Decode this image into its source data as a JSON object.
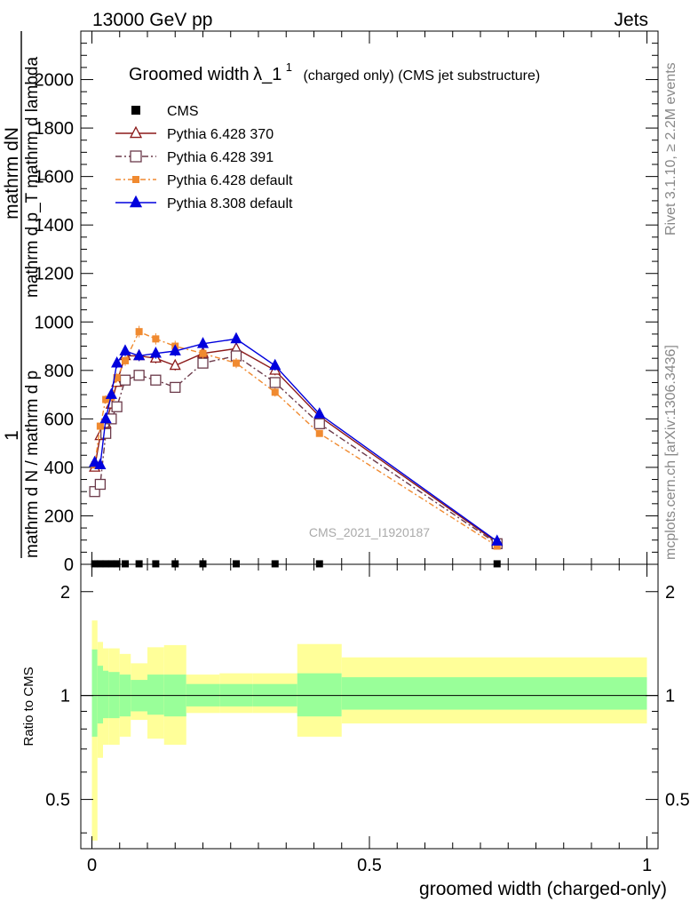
{
  "header": {
    "left": "13000 GeV pp",
    "right": "Jets"
  },
  "side_labels": {
    "rivet": "Rivet 3.1.10, ≥ 2.2M events",
    "mcplots": "mcplots.cern.ch [arXiv:1306.3436]"
  },
  "watermark": "CMS_2021_I1920187",
  "chart_data": [
    {
      "type": "line",
      "title_main": "Groomed width",
      "title_lambda": "λ_1",
      "title_sup": "1",
      "title_rest": "(charged only) (CMS jet substructure)",
      "ylabel_top": "1",
      "ylabel_numer": "mathrm dN",
      "ylabel_bottom": "mathrm d N / mathrm d p",
      "ylabel_bottom2": "mathrm d p_T mathrm d lambda",
      "ylabel_sub": "T",
      "xlim": [
        -0.02,
        1.02
      ],
      "ylim": [
        0,
        2200
      ],
      "yticks": [
        0,
        200,
        400,
        600,
        800,
        1000,
        1200,
        1400,
        1600,
        1800,
        2000
      ],
      "ytick_labels": [
        "0",
        "200",
        "400",
        "600",
        "800",
        "1000",
        "1200",
        "1400",
        "1600",
        "1800",
        "2000"
      ],
      "legend_position": "top-left",
      "series": [
        {
          "name": "CMS",
          "color": "#000000",
          "marker": "square-filled",
          "x": [
            0.005,
            0.015,
            0.025,
            0.035,
            0.045,
            0.06,
            0.085,
            0.115,
            0.15,
            0.2,
            0.26,
            0.33,
            0.41,
            0.73
          ],
          "y": [
            2,
            2,
            2,
            2,
            2,
            2,
            2,
            2,
            2,
            2,
            2,
            2,
            2,
            2
          ]
        },
        {
          "name": "Pythia 6.428 370",
          "color": "#8b1a1a",
          "marker": "triangle-open",
          "x": [
            0.005,
            0.015,
            0.025,
            0.035,
            0.045,
            0.06,
            0.085,
            0.115,
            0.15,
            0.2,
            0.26,
            0.33,
            0.41,
            0.73
          ],
          "y": [
            400,
            530,
            580,
            660,
            750,
            860,
            860,
            850,
            820,
            870,
            890,
            800,
            610,
            90
          ]
        },
        {
          "name": "Pythia 6.428 391",
          "color": "#6b3a4a",
          "marker": "square-open",
          "x": [
            0.005,
            0.015,
            0.025,
            0.035,
            0.045,
            0.06,
            0.085,
            0.115,
            0.15,
            0.2,
            0.26,
            0.33,
            0.41,
            0.73
          ],
          "y": [
            300,
            330,
            540,
            600,
            650,
            760,
            780,
            760,
            730,
            830,
            860,
            750,
            580,
            85
          ]
        },
        {
          "name": "Pythia 6.428 default",
          "color": "#f08a30",
          "marker": "square-filled",
          "x": [
            0.005,
            0.015,
            0.025,
            0.035,
            0.045,
            0.06,
            0.085,
            0.115,
            0.15,
            0.2,
            0.26,
            0.33,
            0.41,
            0.73
          ],
          "y": [
            410,
            570,
            680,
            690,
            770,
            840,
            960,
            930,
            900,
            870,
            830,
            710,
            540,
            75
          ]
        },
        {
          "name": "Pythia 8.308 default",
          "color": "#0000dd",
          "marker": "triangle-filled",
          "x": [
            0.005,
            0.015,
            0.025,
            0.035,
            0.045,
            0.06,
            0.085,
            0.115,
            0.15,
            0.2,
            0.26,
            0.33,
            0.41,
            0.73
          ],
          "y": [
            420,
            410,
            600,
            700,
            830,
            880,
            860,
            870,
            880,
            910,
            930,
            820,
            620,
            95
          ]
        }
      ]
    },
    {
      "type": "area",
      "ylabel": "Ratio to CMS",
      "xlabel": "groomed width (charged-only)",
      "xlim": [
        -0.02,
        1.02
      ],
      "ylim": [
        0.36,
        2.4
      ],
      "yticks": [
        0.5,
        1,
        2
      ],
      "ytick_labels": [
        "0.5",
        "1",
        "2"
      ],
      "xticks": [
        0,
        0.5,
        1
      ],
      "xtick_labels": [
        "0",
        "0.5",
        "1"
      ],
      "bin_edges": [
        0,
        0.01,
        0.02,
        0.03,
        0.04,
        0.05,
        0.07,
        0.1,
        0.13,
        0.17,
        0.23,
        0.29,
        0.37,
        0.45,
        1.0
      ],
      "band_inner": {
        "color": "#99ff99",
        "low": [
          0.76,
          0.83,
          0.86,
          0.86,
          0.86,
          0.87,
          0.9,
          0.88,
          0.87,
          0.93,
          0.93,
          0.93,
          0.87,
          0.91
        ],
        "high": [
          1.36,
          1.22,
          1.18,
          1.17,
          1.17,
          1.15,
          1.11,
          1.15,
          1.15,
          1.08,
          1.08,
          1.08,
          1.16,
          1.13
        ]
      },
      "band_outer": {
        "color": "#ffff99",
        "low": [
          0.38,
          0.66,
          0.72,
          0.72,
          0.72,
          0.76,
          0.85,
          0.75,
          0.72,
          0.89,
          0.89,
          0.89,
          0.76,
          0.83
        ],
        "high": [
          1.65,
          1.43,
          1.37,
          1.37,
          1.37,
          1.32,
          1.24,
          1.38,
          1.4,
          1.15,
          1.16,
          1.16,
          1.41,
          1.29
        ]
      }
    }
  ]
}
